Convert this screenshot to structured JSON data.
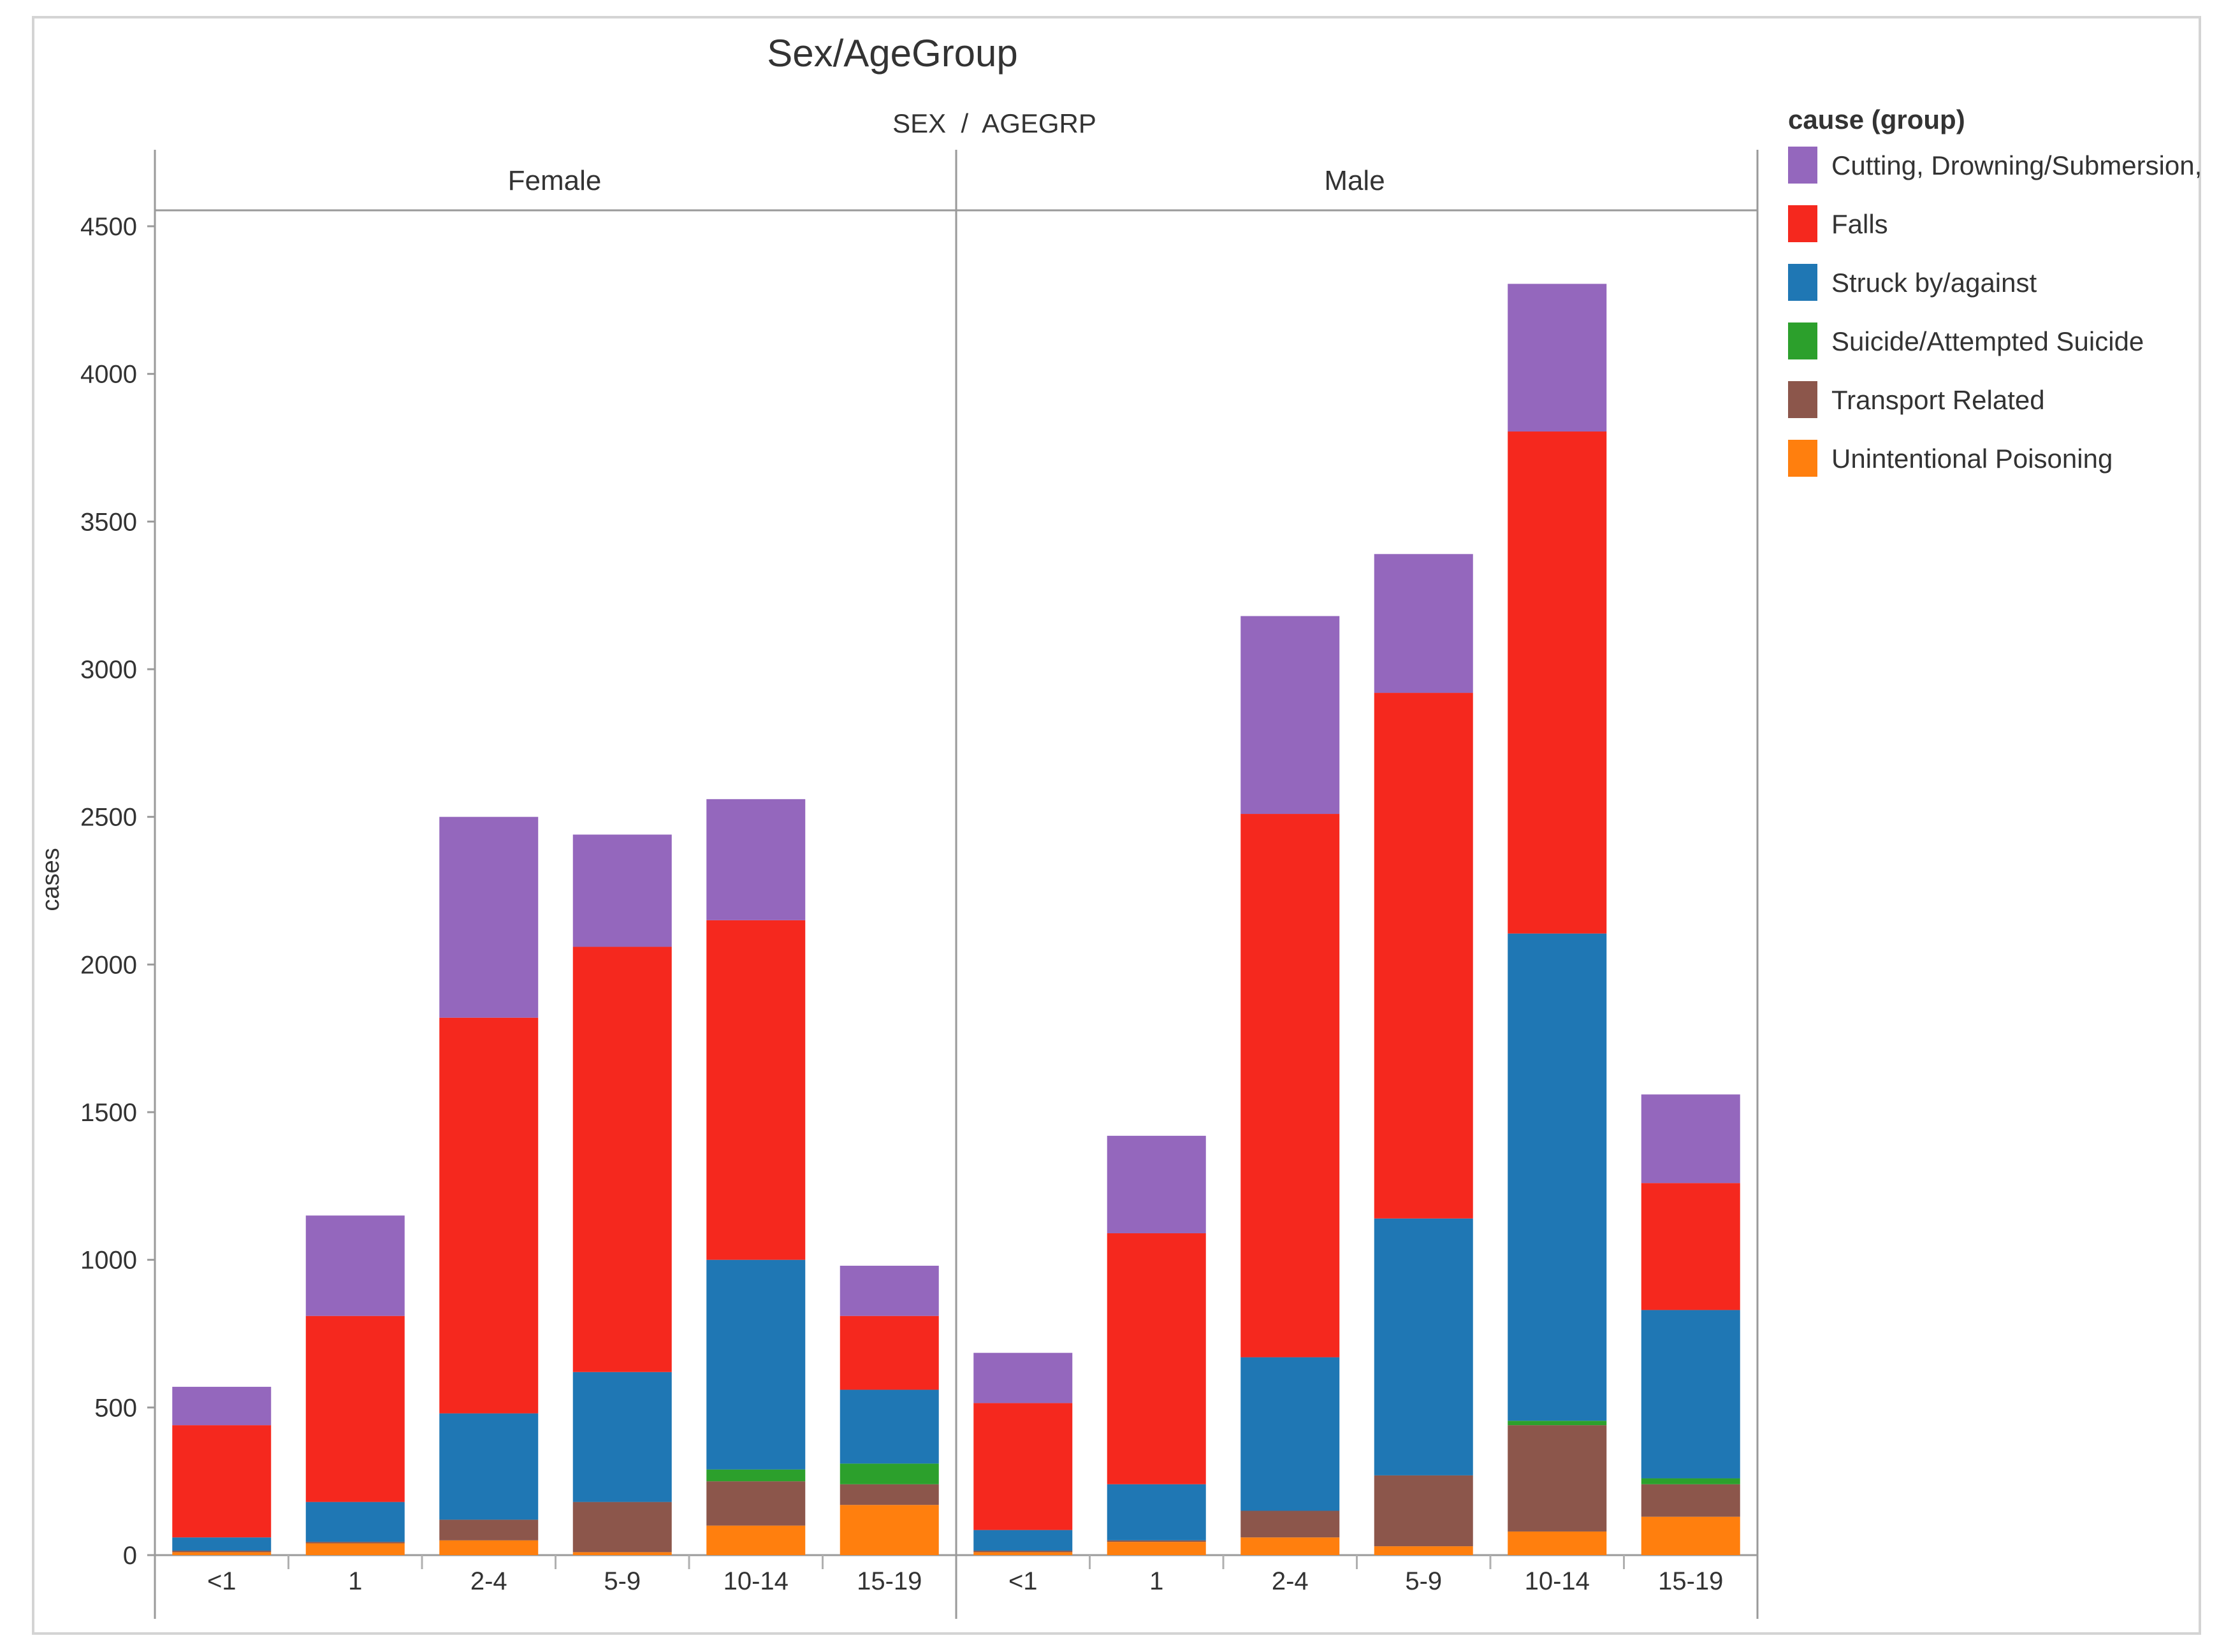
{
  "chart_data": {
    "type": "bar",
    "stacked": true,
    "title": "Sex/AgeGroup",
    "subtitle": "SEX  /  AGEGRP",
    "ylabel": "cases",
    "xlabel": "",
    "ylim": [
      0,
      4500
    ],
    "yticks": [
      0,
      500,
      1000,
      1500,
      2000,
      2500,
      3000,
      3500,
      4000,
      4500
    ],
    "ytick_labels": [
      "0",
      "500",
      "1000",
      "1500",
      "2000",
      "2500",
      "3000",
      "3500",
      "4000",
      "4500"
    ],
    "grid": false,
    "panels": [
      "Female",
      "Male"
    ],
    "categories": [
      "<1",
      "1",
      "2-4",
      "5-9",
      "10-14",
      "15-19"
    ],
    "legend": {
      "title": "cause (group)",
      "position": "right",
      "entries": [
        "Cutting, Drowning/Submersion,",
        "Falls",
        "Struck by/against",
        "Suicide/Attempted Suicide",
        "Transport Related",
        "Unintentional Poisoning"
      ]
    },
    "series": [
      {
        "name": "Unintentional Poisoning",
        "color": "#ff7f0e",
        "values": {
          "Female": [
            10,
            40,
            50,
            10,
            100,
            170
          ],
          "Male": [
            10,
            45,
            60,
            30,
            80,
            130
          ]
        }
      },
      {
        "name": "Transport Related",
        "color": "#8c564b",
        "values": {
          "Female": [
            5,
            5,
            70,
            170,
            150,
            70
          ],
          "Male": [
            5,
            5,
            90,
            240,
            360,
            110
          ]
        }
      },
      {
        "name": "Suicide/Attempted Suicide",
        "color": "#2ca02c",
        "values": {
          "Female": [
            0,
            0,
            0,
            0,
            40,
            70
          ],
          "Male": [
            0,
            0,
            0,
            0,
            15,
            20
          ]
        }
      },
      {
        "name": "Struck by/against",
        "color": "#1f77b4",
        "values": {
          "Female": [
            45,
            135,
            360,
            440,
            710,
            250
          ],
          "Male": [
            70,
            190,
            520,
            870,
            1650,
            570
          ]
        }
      },
      {
        "name": "Falls",
        "color": "#f5281e",
        "values": {
          "Female": [
            380,
            630,
            1340,
            1440,
            1150,
            250
          ],
          "Male": [
            430,
            850,
            1840,
            1780,
            1700,
            430
          ]
        }
      },
      {
        "name": "Cutting, Drowning/Submersion,",
        "color": "#9467bd",
        "values": {
          "Female": [
            130,
            340,
            680,
            380,
            410,
            170
          ],
          "Male": [
            170,
            330,
            670,
            470,
            500,
            300
          ]
        }
      }
    ]
  }
}
